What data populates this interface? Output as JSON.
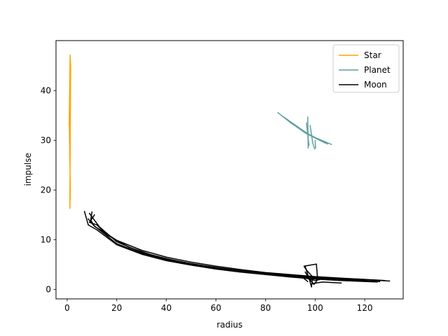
{
  "chart_data": {
    "type": "line",
    "title": "",
    "xlabel": "radius",
    "ylabel": "impulse",
    "xlim": [
      -4.5,
      135.5
    ],
    "ylim": [
      -1.9,
      50.1
    ],
    "xticks": [
      0,
      20,
      40,
      60,
      80,
      100,
      120
    ],
    "yticks": [
      0,
      10,
      20,
      30,
      40
    ],
    "grid": false,
    "legend": "top-right",
    "series": [
      {
        "name": "Star",
        "color": "#ffa500",
        "segments": [
          [
            [
              0.8,
              33.0
            ],
            [
              1.2,
              47.2
            ],
            [
              1.4,
              45.0
            ],
            [
              1.1,
              16.3
            ],
            [
              1.3,
              20.0
            ],
            [
              0.9,
              32.5
            ],
            [
              1.2,
              47.0
            ]
          ]
        ]
      },
      {
        "name": "Planet",
        "color": "#5f9ea0",
        "segments": [
          [
            [
              85.0,
              35.6
            ],
            [
              90.0,
              33.6
            ],
            [
              95.0,
              31.9
            ],
            [
              100.0,
              30.6
            ],
            [
              106.5,
              29.2
            ]
          ],
          [
            [
              88.0,
              34.5
            ],
            [
              96.0,
              31.5
            ],
            [
              104.0,
              29.5
            ]
          ],
          [
            [
              86.5,
              35.0
            ],
            [
              98.0,
              31.0
            ],
            [
              105.0,
              29.3
            ]
          ],
          [
            [
              97.0,
              34.7
            ],
            [
              97.2,
              28.5
            ]
          ],
          [
            [
              96.5,
              33.5
            ],
            [
              97.5,
              29.0
            ]
          ],
          [
            [
              98.0,
              33.0
            ],
            [
              99.0,
              29.5
            ],
            [
              99.8,
              28.3
            ]
          ],
          [
            [
              100.0,
              30.0
            ],
            [
              100.2,
              28.5
            ]
          ]
        ]
      },
      {
        "name": "Moon",
        "color": "#000000",
        "segments": [
          [
            [
              7.0,
              15.7
            ],
            [
              8.5,
              13.0
            ],
            [
              12.0,
              12.0
            ],
            [
              20.0,
              9.0
            ],
            [
              30.0,
              7.1
            ],
            [
              40.0,
              5.8
            ],
            [
              50.0,
              4.9
            ],
            [
              60.0,
              4.1
            ],
            [
              70.0,
              3.5
            ],
            [
              80.0,
              3.0
            ],
            [
              90.0,
              2.5
            ],
            [
              100.0,
              2.1
            ],
            [
              110.0,
              1.8
            ],
            [
              125.0,
              1.5
            ]
          ],
          [
            [
              9.0,
              15.3
            ],
            [
              13.0,
              12.6
            ],
            [
              20.0,
              9.6
            ],
            [
              30.0,
              7.5
            ],
            [
              40.0,
              6.2
            ],
            [
              50.0,
              5.2
            ],
            [
              60.0,
              4.4
            ],
            [
              70.0,
              3.8
            ],
            [
              80.0,
              3.3
            ],
            [
              90.0,
              2.9
            ],
            [
              100.0,
              2.5
            ],
            [
              115.0,
              2.1
            ],
            [
              130.0,
              1.7
            ]
          ],
          [
            [
              10.0,
              15.6
            ],
            [
              9.5,
              14.0
            ],
            [
              11.0,
              12.7
            ],
            [
              14.0,
              11.8
            ],
            [
              20.0,
              9.9
            ],
            [
              30.0,
              7.9
            ],
            [
              40.0,
              6.5
            ],
            [
              50.0,
              5.5
            ],
            [
              60.0,
              4.7
            ],
            [
              70.0,
              4.0
            ],
            [
              80.0,
              3.4
            ],
            [
              90.0,
              3.0
            ],
            [
              100.0,
              2.6
            ],
            [
              110.0,
              2.3
            ],
            [
              128.0,
              1.8
            ]
          ],
          [
            [
              8.5,
              14.2
            ],
            [
              10.5,
              13.0
            ],
            [
              13.0,
              12.0
            ],
            [
              20.0,
              9.2
            ],
            [
              30.0,
              7.3
            ],
            [
              40.0,
              6.0
            ],
            [
              50.0,
              5.0
            ],
            [
              60.0,
              4.3
            ],
            [
              70.0,
              3.7
            ],
            [
              80.0,
              3.2
            ],
            [
              90.0,
              2.7
            ],
            [
              100.0,
              2.3
            ],
            [
              110.0,
              2.0
            ],
            [
              126.0,
              1.6
            ]
          ],
          [
            [
              11.0,
              15.0
            ],
            [
              9.0,
              13.5
            ],
            [
              12.0,
              13.0
            ],
            [
              16.0,
              11.0
            ],
            [
              25.0,
              8.5
            ],
            [
              35.0,
              6.8
            ],
            [
              45.0,
              5.6
            ],
            [
              55.0,
              4.8
            ],
            [
              65.0,
              4.1
            ],
            [
              75.0,
              3.5
            ],
            [
              85.0,
              3.0
            ],
            [
              95.0,
              2.6
            ],
            [
              105.0,
              2.2
            ],
            [
              120.0,
              1.9
            ]
          ],
          [
            [
              96.0,
              4.6
            ],
            [
              97.0,
              3.0
            ],
            [
              98.0,
              1.5
            ],
            [
              98.5,
              0.5
            ],
            [
              99.0,
              2.5
            ],
            [
              96.5,
              3.9
            ],
            [
              95.5,
              4.7
            ],
            [
              100.5,
              5.1
            ],
            [
              101.0,
              2.0
            ],
            [
              99.5,
              1.0
            ],
            [
              97.5,
              2.2
            ],
            [
              96.0,
              3.5
            ]
          ],
          [
            [
              99.0,
              1.2
            ],
            [
              103.0,
              1.5
            ],
            [
              110.5,
              1.3
            ]
          ],
          [
            [
              97.0,
              1.6
            ],
            [
              95.0,
              2.4
            ],
            [
              100.0,
              1.8
            ],
            [
              102.0,
              2.0
            ]
          ]
        ]
      }
    ]
  }
}
